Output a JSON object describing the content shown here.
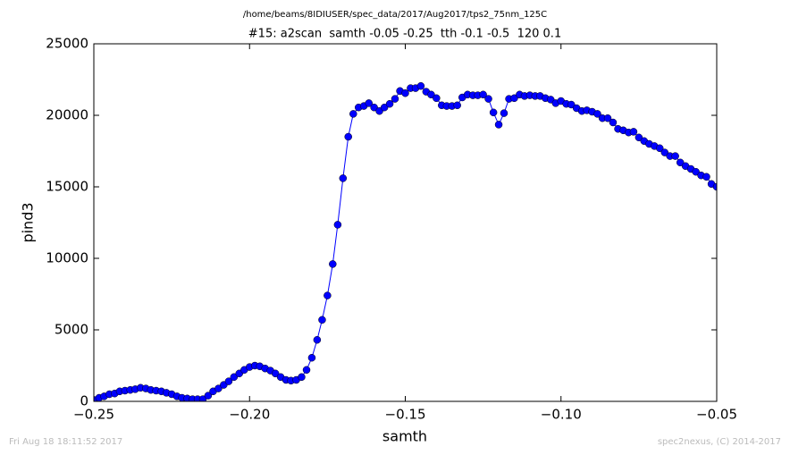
{
  "chart_data": {
    "type": "line",
    "suptitle": "/home/beams/8IDIUSER/spec_data/2017/Aug2017/tps2_75nm_125C",
    "title": "#15: a2scan  samth -0.05 -0.25  tth -0.1 -0.5  120 0.1",
    "xlabel": "samth",
    "ylabel": "pind3",
    "footer_left": "Fri Aug 18 18:11:52 2017",
    "footer_right": "spec2nexus, (C) 2014-2017",
    "color": "#0000ff",
    "marker": "circle",
    "x": [
      -0.25,
      -0.2483,
      -0.2467,
      -0.245,
      -0.2433,
      -0.2417,
      -0.24,
      -0.2383,
      -0.2367,
      -0.235,
      -0.2333,
      -0.2317,
      -0.23,
      -0.2283,
      -0.2267,
      -0.225,
      -0.2233,
      -0.2217,
      -0.22,
      -0.2183,
      -0.2167,
      -0.215,
      -0.2133,
      -0.2117,
      -0.21,
      -0.2083,
      -0.2067,
      -0.205,
      -0.2033,
      -0.2017,
      -0.2,
      -0.1983,
      -0.1967,
      -0.195,
      -0.1933,
      -0.1917,
      -0.19,
      -0.1883,
      -0.1867,
      -0.185,
      -0.1833,
      -0.1817,
      -0.18,
      -0.1783,
      -0.1767,
      -0.175,
      -0.1733,
      -0.1717,
      -0.17,
      -0.1683,
      -0.1667,
      -0.165,
      -0.1633,
      -0.1617,
      -0.16,
      -0.1583,
      -0.1567,
      -0.155,
      -0.1533,
      -0.1517,
      -0.15,
      -0.1483,
      -0.1467,
      -0.145,
      -0.1433,
      -0.1417,
      -0.14,
      -0.1383,
      -0.1367,
      -0.135,
      -0.1333,
      -0.1317,
      -0.13,
      -0.1283,
      -0.1267,
      -0.125,
      -0.1233,
      -0.1217,
      -0.12,
      -0.1183,
      -0.1167,
      -0.115,
      -0.1133,
      -0.1117,
      -0.11,
      -0.1083,
      -0.1067,
      -0.105,
      -0.1033,
      -0.1017,
      -0.1,
      -0.0983,
      -0.0967,
      -0.095,
      -0.0933,
      -0.0917,
      -0.09,
      -0.0883,
      -0.0867,
      -0.085,
      -0.0833,
      -0.0817,
      -0.08,
      -0.0783,
      -0.0767,
      -0.075,
      -0.0733,
      -0.0717,
      -0.07,
      -0.0683,
      -0.0667,
      -0.065,
      -0.0633,
      -0.0617,
      -0.06,
      -0.0583,
      -0.0567,
      -0.055,
      -0.0533,
      -0.0517,
      -0.05
    ],
    "values": [
      100,
      250,
      350,
      500,
      550,
      700,
      750,
      800,
      850,
      950,
      900,
      800,
      750,
      700,
      600,
      500,
      350,
      250,
      200,
      150,
      150,
      150,
      400,
      700,
      900,
      1150,
      1400,
      1700,
      1950,
      2200,
      2400,
      2500,
      2450,
      2300,
      2150,
      1950,
      1700,
      1500,
      1450,
      1500,
      1700,
      2200,
      3050,
      4300,
      5700,
      7400,
      9600,
      12350,
      15600,
      18500,
      20100,
      20550,
      20650,
      20850,
      20550,
      20300,
      20550,
      20800,
      21150,
      21700,
      21550,
      21900,
      21900,
      22050,
      21650,
      21450,
      21200,
      20700,
      20650,
      20650,
      20700,
      21250,
      21450,
      21400,
      21400,
      21450,
      21150,
      20200,
      19350,
      20150,
      21150,
      21200,
      21450,
      21350,
      21400,
      21350,
      21350,
      21200,
      21100,
      20850,
      21000,
      20800,
      20750,
      20500,
      20300,
      20350,
      20250,
      20100,
      19800,
      19800,
      19500,
      19050,
      18950,
      18800,
      18850,
      18450,
      18200,
      18000,
      17850,
      17700,
      17400,
      17150,
      17150,
      16700,
      16450,
      16250,
      16050,
      15800,
      15700,
      15200,
      15000
    ],
    "xlim": [
      -0.25,
      -0.05
    ],
    "xticks": [
      {
        "value": -0.25,
        "label": "−0.25"
      },
      {
        "value": -0.2,
        "label": "−0.20"
      },
      {
        "value": -0.15,
        "label": "−0.15"
      },
      {
        "value": -0.1,
        "label": "−0.10"
      },
      {
        "value": -0.05,
        "label": "−0.05"
      }
    ],
    "ylim": [
      0,
      25000
    ],
    "yticks": [
      0,
      5000,
      10000,
      15000,
      20000,
      25000
    ]
  }
}
